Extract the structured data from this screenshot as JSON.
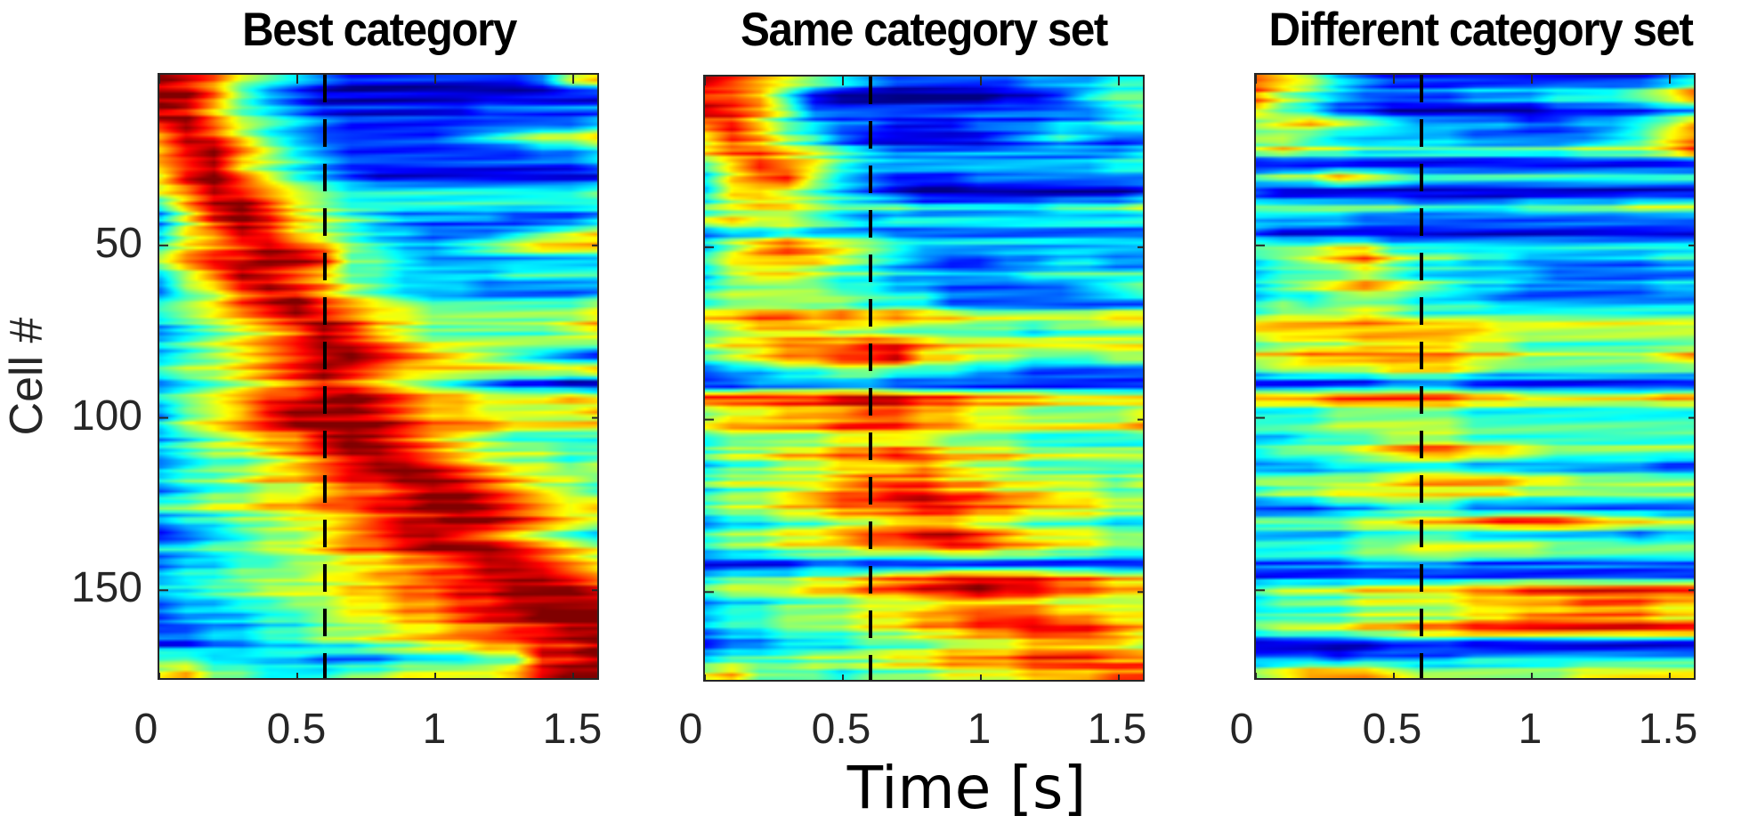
{
  "chart_data": {
    "type": "heatmap",
    "colormap": "jet",
    "shared_xlabel": "Time [s]",
    "shared_ylabel": "Cell #",
    "xlim": [
      0,
      1.6
    ],
    "ylim": [
      0.5,
      176.5
    ],
    "x_ticks": [
      0,
      0.5,
      1,
      1.5
    ],
    "x_tick_labels": [
      "0",
      "0.5",
      "1",
      "1.5"
    ],
    "y_ticks": [
      50,
      100,
      150
    ],
    "y_tick_labels": [
      "50",
      "100",
      "150"
    ],
    "marker_line": {
      "x": 0.6,
      "style": "dashed",
      "color": "#000000"
    },
    "n_cells": 176,
    "time_bins_s": [
      0,
      0.1,
      0.2,
      0.3,
      0.4,
      0.5,
      0.6,
      0.7,
      0.8,
      0.9,
      1.0,
      1.1,
      1.2,
      1.3,
      1.4,
      1.5,
      1.6
    ],
    "value_scale": "normalized activity 0 (blue) to 9 (dark red); each row string = one group of 4 cells, one digit per time bin",
    "panels": [
      {
        "title": "Best category",
        "show_y_tick_labels": true,
        "rows": [
          "98754321111111256",
          "99742100000000000",
          "98643211111122222",
          "89754321111111112",
          "79864322222345667",
          "68975321111111223",
          "78965432222222223",
          "58975321000000000",
          "67987654444444445",
          "36897543333333333",
          "25898654322221112",
          "36798654332223456",
          "46789875433456777",
          "57889984432222222",
          "35798764433334444",
          "25689875433322222",
          "34578976543333334",
          "45678987665555556",
          "23456798654444456",
          "34567898765555555",
          "23456789876543210",
          "45567898766666667",
          "23456787654321100",
          "34567789876655565",
          "24568999876655556",
          "35678999987776666",
          "23456689876543333",
          "34556789987655544",
          "23445678998765545",
          "34456678899876554",
          "23445567789987654",
          "44556677889987656",
          "23344556788998765",
          "12345567899876543",
          "33445567789998765",
          "23344556677899876",
          "34455566778899987",
          "33445556677889998",
          "23344556677889999",
          "12223345566788999",
          "22334455566778899",
          "11223344556677889",
          "44333322233344889",
          "56443334455556899"
        ]
      },
      {
        "title": "Same category set",
        "show_y_tick_labels": false,
        "rows": [
          "87654321111122233",
          "88741000000112455",
          "87641111111111123",
          "78643221112223344",
          "57643100000123211",
          "67765432222222223",
          "46876433333333344",
          "36785321112222222",
          "36654321000000001",
          "45665444333334445",
          "56554323333333333",
          "23343332222222222",
          "35787654333333333",
          "46666543211223322",
          "35665443333344444",
          "45555443322222345",
          "34444433311111111",
          "77887878776666677",
          "45666554444434444",
          "56677788766666666",
          "45677889665544455",
          "23344554443322222",
          "11222221111111111",
          "88888999887776666",
          "45566677665544445",
          "67777888776666667",
          "34444555544433333",
          "45566778766655555",
          "34455666765544444",
          "45555677766555545",
          "34456778877665544",
          "45566777887766655",
          "23344556665544433",
          "45566788998766655",
          "34455566677665544",
          "11112211111111111",
          "34445567788887766",
          "45556677889887766",
          "23344455566665555",
          "34455566778887766",
          "23344455667788876",
          "12233344455566665",
          "34445556677788877",
          "56444344455566677"
        ]
      },
      {
        "title": "Different category set",
        "show_y_tick_labels": false,
        "rows": [
          "76532111111111123",
          "75432222333444568",
          "64311000000111122",
          "56765433332233457",
          "44322222111112356",
          "56554444444455568",
          "11111111111111111",
          "45576544444444444",
          "10000000000000000",
          "44444433334444555",
          "33332222222222222",
          "10000000000000000",
          "55566444444444444",
          "34567544332222233",
          "34445433333222222",
          "34567654332222233",
          "34344433322222222",
          "45556544444444444",
          "77777777766666666",
          "45556666554444444",
          "66777777665555567",
          "45555666544444444",
          "11111222111111111",
          "77788888776666677",
          "33344444333333333",
          "44455555444444444",
          "22333444333333333",
          "45556788776555555",
          "22233333222222211",
          "44444566665544444",
          "45566666665555555",
          "11122333111111111",
          "44445566788876655",
          "33334444333333233",
          "44445566666555555",
          "22223333222222222",
          "11111111111111111",
          "45556666778888888",
          "34445555666677766",
          "44445555667777766",
          "45556677888888888",
          "00000111000000000",
          "22212222333333333",
          "45666544444455555"
        ]
      }
    ]
  }
}
